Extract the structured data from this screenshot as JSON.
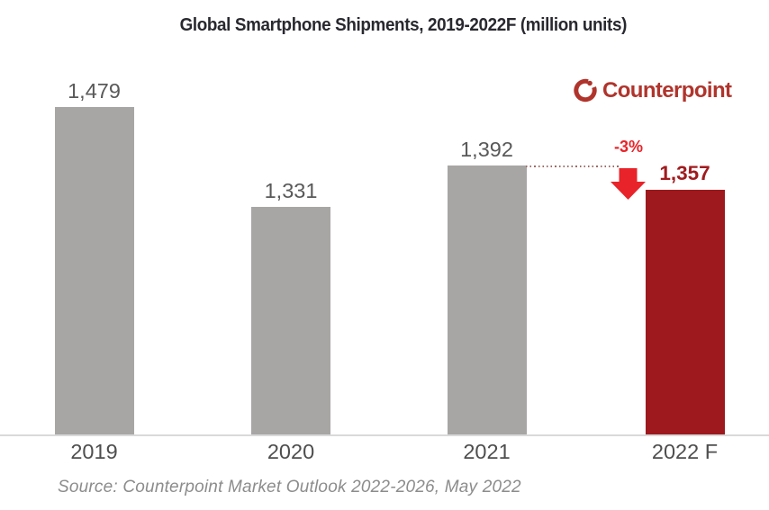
{
  "chart_data": {
    "type": "bar",
    "title": "Global Smartphone Shipments, 2019-2022F (million units)",
    "categories": [
      "2019",
      "2020",
      "2021",
      "2022 F"
    ],
    "values": [
      1479,
      1331,
      1392,
      1357
    ],
    "value_labels": [
      "1,479",
      "1,331",
      "1,392",
      "1,357"
    ],
    "ylim": [
      994,
      1500
    ],
    "bar_color_default": "#A8A6A4",
    "bar_color_highlight": "#9E191D",
    "value_label_color_default": "#595959",
    "value_label_color_highlight": "#A01B1E",
    "highlight_index": 3,
    "annotation": {
      "label": "-3%",
      "color": "#E82329"
    },
    "gridlines": false,
    "legend": false
  },
  "logo": {
    "text": "Counterpoint",
    "color": "#B0342C"
  },
  "source": {
    "text": "Source: Counterpoint Market Outlook 2022-2026, May 2022"
  }
}
